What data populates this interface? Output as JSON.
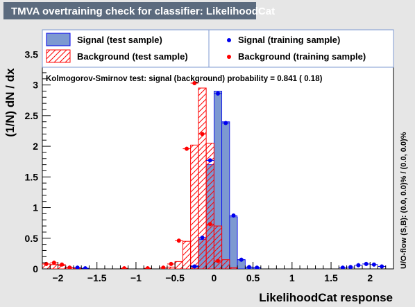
{
  "title": "TMVA overtraining check for classifier: LikelihoodCat",
  "chart_data": {
    "type": "histogram",
    "xlabel": "LikelihoodCat response",
    "ylabel": "(1/N) dN / dx",
    "right_label": "U/O-flow (S,B): (0.0, 0.0)% / (0.0, 0.0)%",
    "ks_text": "Kolmogorov-Smirnov test: signal (background) probability = 0.841 ( 0.18)",
    "xlim": [
      -2.2,
      2.3
    ],
    "ylim": [
      0,
      3.9
    ],
    "bin_edges": [
      -2.2,
      -2.1,
      -2.0,
      -1.9,
      -1.8,
      -1.7,
      -1.6,
      -1.5,
      -1.4,
      -1.3,
      -1.2,
      -1.1,
      -1.0,
      -0.9,
      -0.8,
      -0.7,
      -0.6,
      -0.5,
      -0.4,
      -0.3,
      -0.2,
      -0.1,
      0.0,
      0.1,
      0.2,
      0.3,
      0.4,
      0.5,
      0.6,
      0.7,
      0.8,
      0.9,
      1.0,
      1.1,
      1.2,
      1.3,
      1.4,
      1.5,
      1.6,
      1.7,
      1.8,
      1.9,
      2.0,
      2.1,
      2.2,
      2.3
    ],
    "xticks_major": [
      -2,
      -1.5,
      -1,
      -0.5,
      0,
      0.5,
      1,
      1.5,
      2
    ],
    "xtick_labels": [
      "−2",
      "−1.5",
      "−1",
      "−0.5",
      "0",
      "0.5",
      "1",
      "1.5",
      "2"
    ],
    "yticks_major": [
      0,
      0.5,
      1,
      1.5,
      2,
      2.5,
      3,
      3.5
    ],
    "ytick_labels": [
      "0",
      "0.5",
      "1",
      "1.5",
      "2",
      "2.5",
      "3",
      "3.5"
    ],
    "series": [
      {
        "name": "Signal (test sample)",
        "kind": "filled-histogram",
        "values": [
          0,
          0,
          0,
          0,
          0,
          0,
          0,
          0,
          0,
          0,
          0,
          0,
          0,
          0,
          0,
          0,
          0,
          0,
          0,
          0.05,
          0.48,
          1.7,
          2.9,
          2.4,
          0.85,
          0.15,
          0.03,
          0.02,
          0,
          0,
          0,
          0,
          0,
          0,
          0,
          0,
          0,
          0,
          0,
          0,
          0,
          0,
          0,
          0,
          0
        ]
      },
      {
        "name": "Background (test sample)",
        "kind": "hatched-histogram",
        "values": [
          0.08,
          0.07,
          0.05,
          0.02,
          0.01,
          0,
          0,
          0,
          0,
          0,
          0,
          0,
          0,
          0,
          0,
          0,
          0.03,
          0.12,
          0.45,
          2.02,
          2.95,
          2.05,
          0.7,
          0.15,
          0.02,
          0,
          0,
          0,
          0,
          0,
          0,
          0,
          0,
          0,
          0,
          0,
          0,
          0,
          0,
          0,
          0,
          0,
          0,
          0,
          0
        ]
      },
      {
        "name": "Signal (training sample)",
        "kind": "points",
        "values": [
          0,
          0,
          0,
          0.02,
          0.02,
          0.01,
          0,
          0,
          0,
          0,
          0,
          0,
          0,
          0,
          0,
          0,
          0,
          0,
          0,
          0.04,
          0.51,
          1.77,
          2.86,
          2.38,
          0.87,
          0.15,
          0.03,
          0.02,
          0,
          0,
          0,
          0,
          0,
          0,
          0,
          0,
          0,
          0,
          0.02,
          0.03,
          0.06,
          0.08,
          0.07,
          0.04,
          0
        ]
      },
      {
        "name": "Background (training sample)",
        "kind": "points",
        "values": [
          0.08,
          0.1,
          0.07,
          0.02,
          0,
          0,
          0,
          0,
          0,
          0,
          0.01,
          0,
          0,
          0.01,
          0,
          0.02,
          0.08,
          0.46,
          1.96,
          3.03,
          2.2,
          0.73,
          0.13,
          0,
          0,
          0,
          0,
          0,
          0,
          0,
          0,
          0,
          0,
          0,
          0,
          0,
          0,
          0,
          0,
          0,
          0,
          0,
          0,
          0,
          0
        ]
      }
    ],
    "colors": {
      "signal_fill": "#7d99d1",
      "signal_line": "#0000ee",
      "background_line": "#ff0000",
      "title_bg": "#5c6b7e",
      "frame_bg": "#ffffff",
      "outer_bg": "#e6e6e6"
    }
  }
}
